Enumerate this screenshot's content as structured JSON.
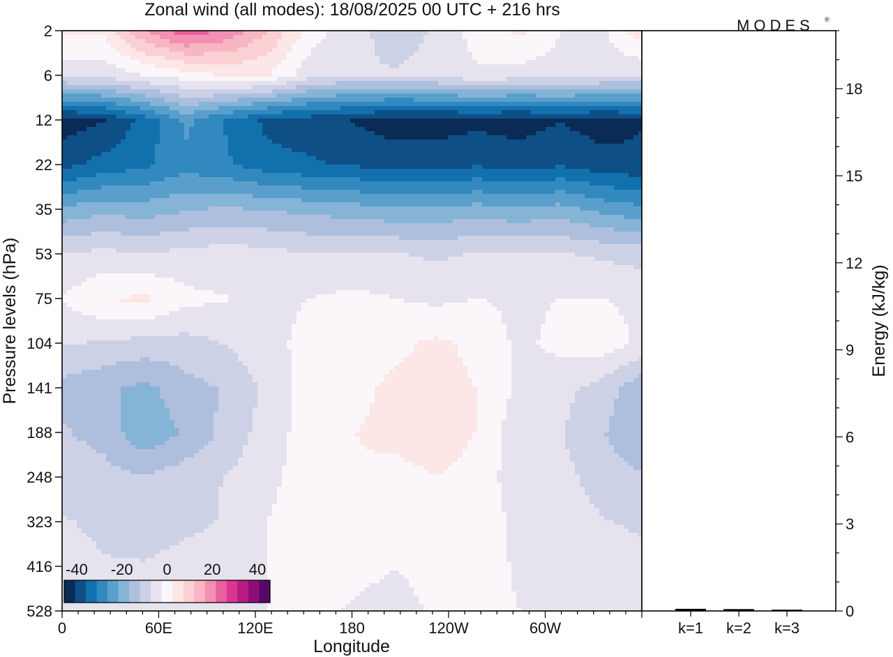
{
  "chart_data": [
    {
      "type": "heatmap",
      "title": "Zonal wind (all modes):  18/08/2025  00 UTC  + 216 hrs",
      "xlabel": "Longitude",
      "ylabel": "Pressure levels (hPa)",
      "x_ticks": [
        "0",
        "60E",
        "120E",
        "180",
        "120W",
        "60W"
      ],
      "y_levels": [
        "2",
        "6",
        "12",
        "22",
        "35",
        "53",
        "75",
        "104",
        "141",
        "188",
        "248",
        "323",
        "416",
        "528"
      ],
      "colorbar": {
        "tick_labels": [
          "-40",
          "-20",
          "0",
          "20",
          "40"
        ],
        "range": [
          -40,
          40
        ],
        "colors": [
          "#0a2b55",
          "#0e4f86",
          "#1270ad",
          "#3189c0",
          "#5a9fcb",
          "#86b4d6",
          "#aebfdd",
          "#cdd1e6",
          "#e6e3ef",
          "#fbf6fa",
          "#fde6e6",
          "#fbd0d3",
          "#f8b5c2",
          "#f190b2",
          "#e9609f",
          "#d93590",
          "#b81a83",
          "#8c0f78",
          "#5a0868"
        ]
      },
      "bands": [
        {
          "level": "2",
          "values": [
            3,
            3,
            15,
            22,
            18,
            10,
            0,
            -5,
            -8,
            -6,
            0,
            3,
            -2,
            -3,
            5
          ]
        },
        {
          "level": "6",
          "values": [
            -5,
            -5,
            -2,
            0,
            3,
            2,
            -5,
            -6,
            -6,
            -5,
            -3,
            -4,
            -4,
            -5,
            -6
          ]
        },
        {
          "level": "12",
          "values": [
            -38,
            -36,
            -30,
            -22,
            -28,
            -33,
            -34,
            -36,
            -38,
            -38,
            -37,
            -38,
            -36,
            -38,
            -36
          ]
        },
        {
          "level": "22",
          "values": [
            -33,
            -30,
            -28,
            -25,
            -27,
            -30,
            -31,
            -32,
            -33,
            -33,
            -32,
            -33,
            -32,
            -34,
            -35
          ]
        },
        {
          "level": "35",
          "values": [
            -18,
            -16,
            -17,
            -15,
            -14,
            -15,
            -16,
            -17,
            -18,
            -18,
            -17,
            -18,
            -17,
            -20,
            -22
          ]
        },
        {
          "level": "53",
          "values": [
            -6,
            -5,
            -6,
            -5,
            -4,
            -5,
            -6,
            -6,
            -6,
            -7,
            -6,
            -6,
            -6,
            -7,
            -8
          ]
        },
        {
          "level": "75",
          "values": [
            -2,
            2,
            3,
            -1,
            -2,
            -3,
            -2,
            -1,
            -2,
            -3,
            -2,
            -3,
            -2,
            -2,
            -3
          ]
        },
        {
          "level": "104",
          "values": [
            -6,
            -7,
            -8,
            -8,
            -6,
            -3,
            -1,
            0,
            1,
            3,
            1,
            -3,
            -1,
            0,
            -3
          ]
        },
        {
          "level": "141",
          "values": [
            -12,
            -14,
            -16,
            -12,
            -10,
            -5,
            0,
            1,
            3,
            4,
            2,
            -3,
            -5,
            -8,
            -14
          ]
        },
        {
          "level": "188",
          "values": [
            -10,
            -12,
            -18,
            -14,
            -9,
            -4,
            0,
            2,
            3,
            4,
            2,
            -5,
            -6,
            -10,
            -15
          ]
        },
        {
          "level": "248",
          "values": [
            -8,
            -9,
            -10,
            -8,
            -6,
            -3,
            0,
            2,
            1,
            2,
            1,
            -5,
            -5,
            -8,
            -10
          ]
        },
        {
          "level": "323",
          "values": [
            -6,
            -7,
            -8,
            -7,
            -6,
            -2,
            1,
            2,
            0,
            1,
            2,
            -4,
            -4,
            -6,
            -7
          ]
        },
        {
          "level": "416",
          "values": [
            -5,
            -6,
            -6,
            -5,
            -5,
            -2,
            1,
            0,
            -2,
            0,
            1,
            -3,
            -3,
            -4,
            -5
          ]
        },
        {
          "level": "528",
          "values": [
            -5,
            -5,
            -6,
            -5,
            -4,
            -2,
            0,
            -3,
            -5,
            -1,
            0,
            -2,
            -3,
            -4,
            -5
          ]
        }
      ]
    },
    {
      "type": "bar",
      "categories": [
        "k=1",
        "k=2",
        "k=3"
      ],
      "values": [
        0.05,
        0.04,
        0.02
      ],
      "ylabel": "Energy (kJ/kg)",
      "ylim": [
        0,
        20
      ],
      "y_ticks": [
        "0",
        "3",
        "6",
        "9",
        "12",
        "15",
        "18"
      ]
    }
  ],
  "logo": {
    "text": "MODES",
    "mark": "®"
  }
}
